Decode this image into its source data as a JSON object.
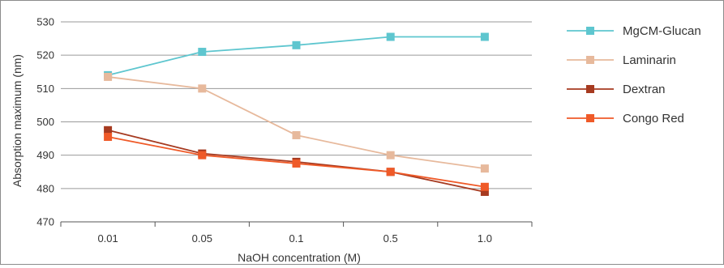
{
  "chart_data": {
    "type": "line",
    "title": "",
    "xlabel": "NaOH concentration (M)",
    "ylabel": "Absorption maximum (nm)",
    "categories": [
      "0.01",
      "0.05",
      "0.1",
      "0.5",
      "1.0"
    ],
    "ylim": [
      470,
      530
    ],
    "yticks": [
      470,
      480,
      490,
      500,
      510,
      520,
      530
    ],
    "grid": "horizontal",
    "legend_position": "right",
    "series": [
      {
        "name": "MgCM-Glucan",
        "color": "#5ec6cf",
        "values": [
          514,
          521,
          523,
          525.5,
          525.5
        ]
      },
      {
        "name": "Laminarin",
        "color": "#e7b99c",
        "values": [
          513.5,
          510,
          496,
          490,
          486
        ]
      },
      {
        "name": "Dextran",
        "color": "#a63a20",
        "values": [
          497.5,
          490.5,
          488,
          485,
          479
        ]
      },
      {
        "name": "Congo Red",
        "color": "#ef5a28",
        "values": [
          495.5,
          490,
          487.5,
          485,
          480.5
        ]
      }
    ]
  }
}
